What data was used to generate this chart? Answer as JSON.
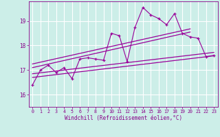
{
  "xlabel": "Windchill (Refroidissement éolien,°C)",
  "bg_color": "#cceee8",
  "grid_color": "#ffffff",
  "line_color": "#990099",
  "x_ticks": [
    0,
    1,
    2,
    3,
    4,
    5,
    6,
    7,
    8,
    9,
    10,
    11,
    12,
    13,
    14,
    15,
    16,
    17,
    18,
    19,
    20,
    21,
    22,
    23
  ],
  "y_ticks": [
    16,
    17,
    18,
    19
  ],
  "ylim": [
    15.5,
    19.8
  ],
  "xlim": [
    -0.5,
    23.5
  ],
  "jagged_x": [
    0,
    1,
    2,
    3,
    4,
    5,
    6,
    7,
    8,
    9,
    10,
    11,
    12,
    13,
    14,
    15,
    16,
    17,
    18,
    19,
    20,
    21,
    22,
    23
  ],
  "jagged_y": [
    16.4,
    17.0,
    17.2,
    16.9,
    17.1,
    16.65,
    17.45,
    17.5,
    17.45,
    17.4,
    18.5,
    18.4,
    17.35,
    18.75,
    19.55,
    19.25,
    19.1,
    18.85,
    19.3,
    18.5,
    18.35,
    18.3,
    17.55,
    17.6
  ],
  "line1_x": [
    0,
    23
  ],
  "line1_y": [
    16.7,
    17.58
  ],
  "line2_x": [
    0,
    23
  ],
  "line2_y": [
    16.85,
    17.72
  ],
  "line3_x": [
    0,
    20
  ],
  "line3_y": [
    17.1,
    18.55
  ],
  "line4_x": [
    0,
    20
  ],
  "line4_y": [
    17.25,
    18.68
  ]
}
